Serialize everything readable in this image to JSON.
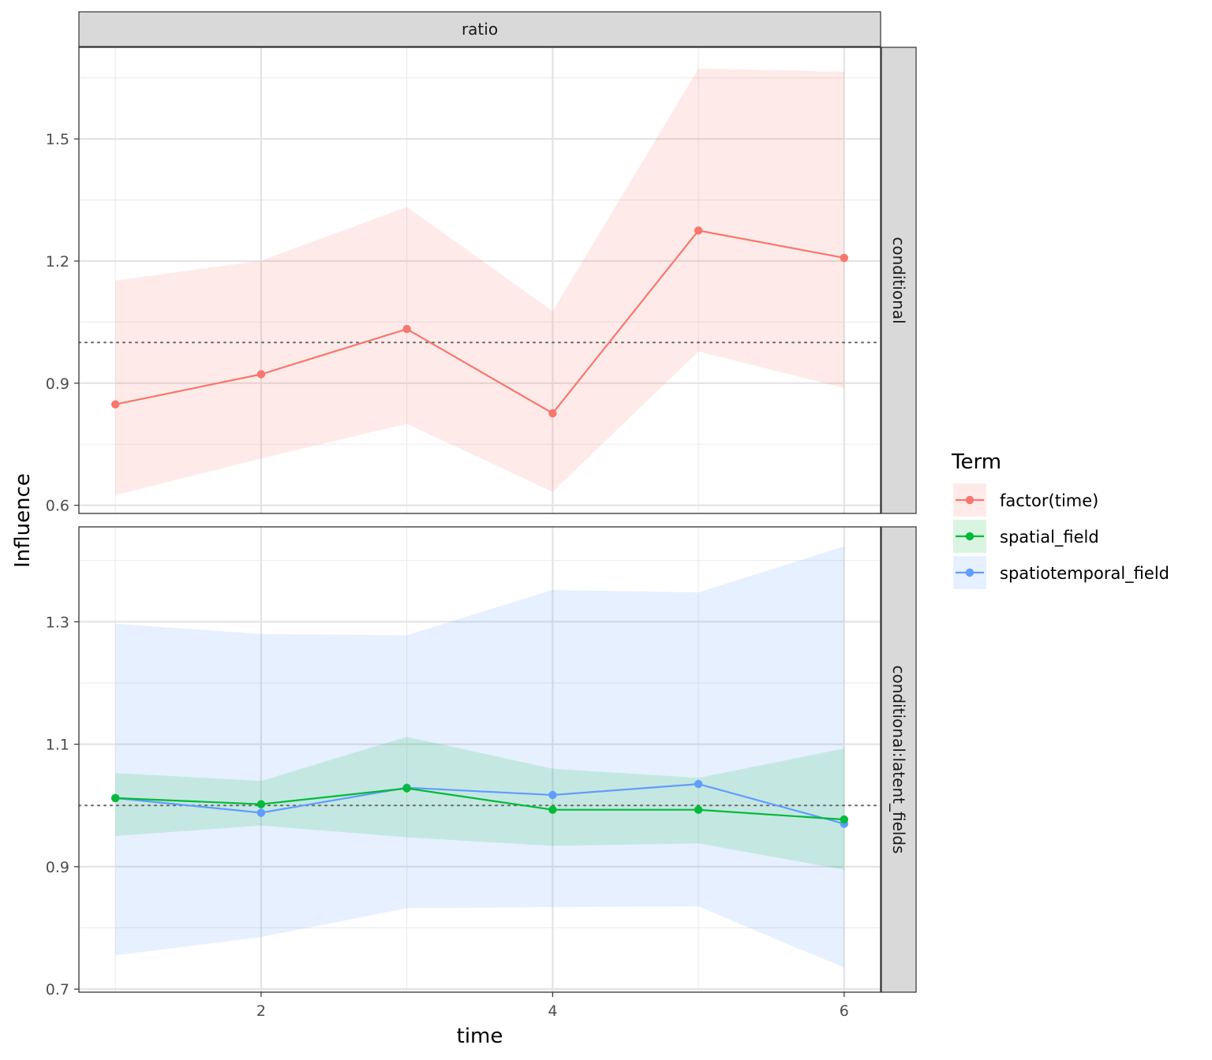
{
  "chart_data": {
    "type": "line",
    "title": "",
    "xlabel": "time",
    "ylabel": "Influence",
    "column_strip": "ratio",
    "x_ticks": [
      2,
      4,
      6
    ],
    "xlim": [
      0.75,
      6.25
    ],
    "reference_line": 1.0,
    "legend": {
      "title": "Term",
      "position": "right",
      "entries": [
        {
          "label": "factor(time)",
          "color": "#F8766D"
        },
        {
          "label": "spatial_field",
          "color": "#00BA38"
        },
        {
          "label": "spatiotemporal_field",
          "color": "#619CFF"
        }
      ]
    },
    "panels": [
      {
        "strip": "conditional",
        "ylim": [
          0.58,
          1.725
        ],
        "y_ticks": [
          0.6,
          0.9,
          1.2,
          1.5
        ],
        "series": [
          {
            "name": "factor(time)",
            "color": "#F8766D",
            "x": [
              1,
              2,
              3,
              4,
              5,
              6
            ],
            "y": [
              0.848,
              0.922,
              1.033,
              0.826,
              1.275,
              1.208
            ],
            "lower": [
              0.625,
              0.715,
              0.8,
              0.633,
              0.978,
              0.888
            ],
            "upper": [
              1.152,
              1.201,
              1.333,
              1.077,
              1.673,
              1.665
            ]
          }
        ]
      },
      {
        "strip": "conditional:latent_fields",
        "ylim": [
          0.695,
          1.455
        ],
        "y_ticks": [
          0.7,
          0.9,
          1.1,
          1.3
        ],
        "series": [
          {
            "name": "spatiotemporal_field",
            "color": "#619CFF",
            "x": [
              1,
              2,
              3,
              4,
              5,
              6
            ],
            "y": [
              1.012,
              0.988,
              1.029,
              1.017,
              1.035,
              0.97
            ],
            "lower": [
              0.755,
              0.785,
              0.832,
              0.834,
              0.835,
              0.735
            ],
            "upper": [
              1.297,
              1.28,
              1.278,
              1.352,
              1.348,
              1.423
            ]
          },
          {
            "name": "spatial_field",
            "color": "#00BA38",
            "x": [
              1,
              2,
              3,
              4,
              5,
              6
            ],
            "y": [
              1.012,
              1.002,
              1.028,
              0.993,
              0.993,
              0.977
            ],
            "lower": [
              0.95,
              0.967,
              0.948,
              0.934,
              0.938,
              0.895
            ],
            "upper": [
              1.053,
              1.04,
              1.112,
              1.06,
              1.045,
              1.093
            ]
          }
        ]
      }
    ]
  }
}
